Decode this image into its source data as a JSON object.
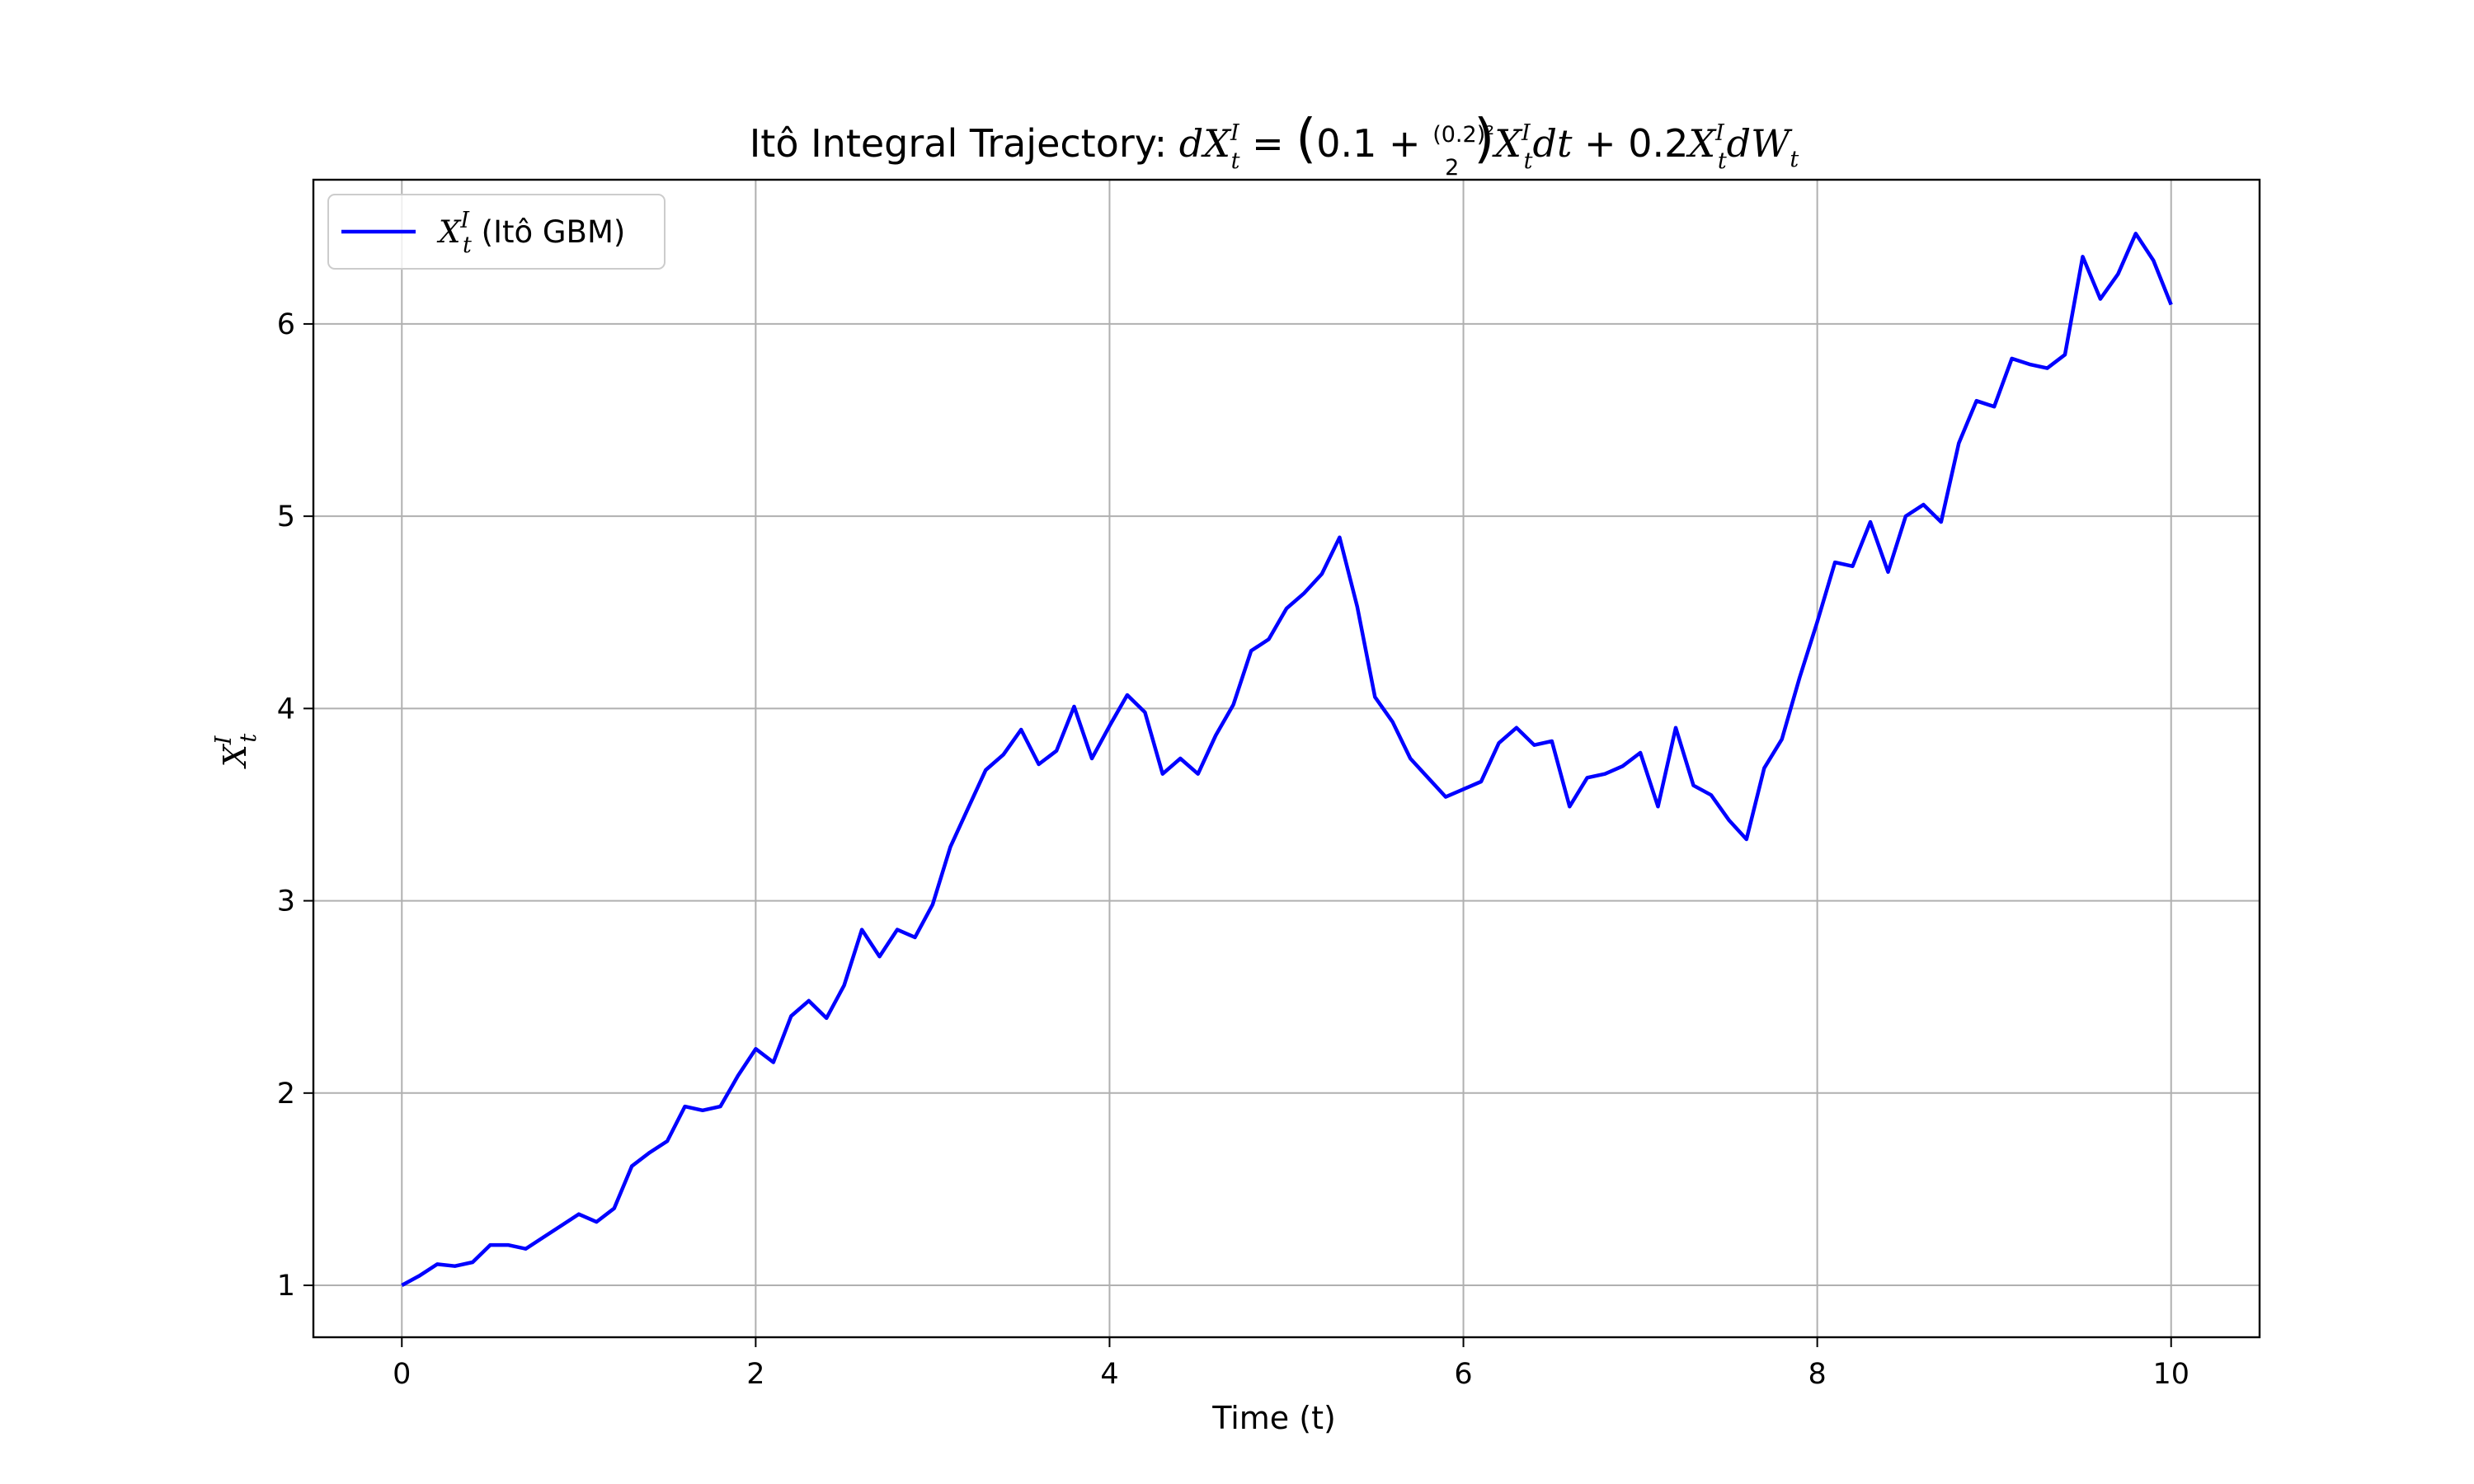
{
  "chart_data": {
    "type": "line",
    "title_prefix": "Itô Integral Trajectory: ",
    "title_math": {
      "lhs": "dX",
      "lhs_sub": "t",
      "lhs_sup": "I",
      "eq": " = ",
      "open": "(",
      "const": "0.1 + ",
      "frac_num": "(0.2)²",
      "frac_den": "2",
      "close": ")",
      "drift": "X",
      "drift_sup": "I",
      "drift_sub": "t",
      "dt": "dt",
      "plus": " + 0.2",
      "vol": "X",
      "vol_sup": "I",
      "vol_sub": "t",
      "dw": "dW",
      "dw_sub": "t"
    },
    "xlabel": "Time (t)",
    "ylabel": {
      "base": "X",
      "sup": "I",
      "sub": "t"
    },
    "xlim": [
      -0.5,
      10.5
    ],
    "ylim": [
      0.73,
      6.75
    ],
    "xticks": [
      0,
      2,
      4,
      6,
      8,
      10
    ],
    "yticks": [
      1,
      2,
      3,
      4,
      5,
      6
    ],
    "grid": true,
    "legend_position": "top-left",
    "series": [
      {
        "name_math": {
          "base": "X",
          "sup": "I",
          "sub": "t"
        },
        "name": " (Itô GBM)",
        "color": "#0000ff",
        "x": [
          0,
          0.1,
          0.2,
          0.3,
          0.4,
          0.5,
          0.6,
          0.7,
          0.8,
          0.9,
          1.0,
          1.1,
          1.2,
          1.3,
          1.4,
          1.5,
          1.6,
          1.7,
          1.8,
          1.9,
          2.0,
          2.1,
          2.2,
          2.3,
          2.4,
          2.5,
          2.6,
          2.7,
          2.8,
          2.9,
          3.0,
          3.1,
          3.2,
          3.3,
          3.4,
          3.5,
          3.6,
          3.7,
          3.8,
          3.9,
          4.0,
          4.1,
          4.2,
          4.3,
          4.4,
          4.5,
          4.6,
          4.7,
          4.8,
          4.9,
          5.0,
          5.1,
          5.2,
          5.3,
          5.4,
          5.5,
          5.6,
          5.7,
          5.8,
          5.9,
          6.0,
          6.1,
          6.2,
          6.3,
          6.4,
          6.5,
          6.6,
          6.7,
          6.8,
          6.9,
          7.0,
          7.1,
          7.2,
          7.3,
          7.4,
          7.5,
          7.6,
          7.7,
          7.8,
          7.9,
          8.0,
          8.1,
          8.2,
          8.3,
          8.4,
          8.5,
          8.6,
          8.7,
          8.8,
          8.9,
          9.0,
          9.1,
          9.2,
          9.3,
          9.4,
          9.5,
          9.6,
          9.7,
          9.8,
          9.9,
          10.0
        ],
        "y": [
          1.0,
          1.05,
          1.11,
          1.1,
          1.12,
          1.21,
          1.21,
          1.19,
          1.25,
          1.31,
          1.37,
          1.33,
          1.4,
          1.62,
          1.69,
          1.75,
          1.93,
          1.91,
          1.93,
          2.09,
          2.23,
          2.16,
          2.4,
          2.48,
          2.39,
          2.56,
          2.85,
          2.71,
          2.85,
          2.81,
          2.98,
          3.28,
          3.48,
          3.68,
          3.76,
          3.89,
          3.71,
          3.78,
          4.01,
          3.74,
          3.91,
          4.07,
          3.98,
          3.66,
          3.74,
          3.66,
          3.86,
          4.02,
          4.3,
          4.36,
          4.52,
          4.6,
          4.7,
          4.89,
          4.53,
          4.06,
          3.93,
          3.74,
          3.64,
          3.54,
          3.58,
          3.62,
          3.82,
          3.9,
          3.81,
          3.83,
          3.49,
          3.64,
          3.66,
          3.7,
          3.77,
          3.49,
          3.9,
          3.6,
          3.55,
          3.42,
          3.32,
          3.69,
          3.84,
          4.16,
          4.45,
          4.76,
          4.74,
          4.97,
          4.71,
          5.0,
          5.06,
          4.97,
          5.38,
          5.6,
          5.57,
          5.82,
          5.79,
          5.77,
          5.84,
          6.35,
          6.13,
          6.26,
          6.47,
          6.33,
          6.1
        ]
      }
    ]
  }
}
